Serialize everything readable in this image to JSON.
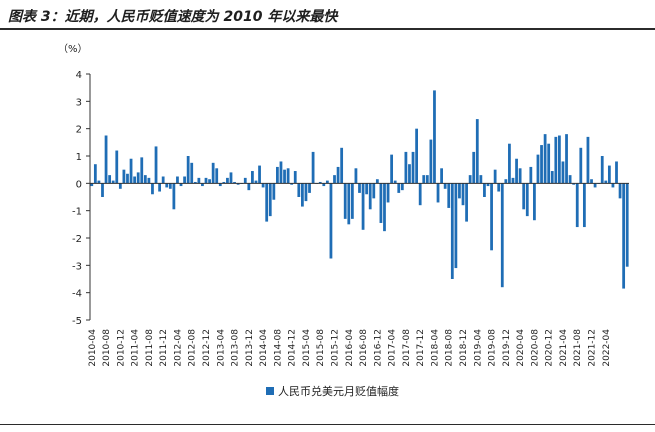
{
  "title": "图表 3：近期，人民币贬值速度为 2010 年以来最快",
  "chart_data": {
    "type": "bar",
    "unit_label": "（%）",
    "ylim": [
      -5,
      4
    ],
    "yticks": [
      -5,
      -4,
      -3,
      -2,
      -1,
      0,
      1,
      2,
      3,
      4
    ],
    "x_start": "2010-04",
    "xtick_labels": [
      "2010-04",
      "2010-08",
      "2010-12",
      "2011-04",
      "2011-08",
      "2011-12",
      "2012-04",
      "2012-08",
      "2012-12",
      "2013-04",
      "2013-08",
      "2013-12",
      "2014-04",
      "2014-08",
      "2014-12",
      "2015-04",
      "2015-08",
      "2015-12",
      "2016-04",
      "2016-08",
      "2016-12",
      "2017-04",
      "2017-08",
      "2017-12",
      "2018-04",
      "2018-08",
      "2018-12",
      "2019-04",
      "2019-08",
      "2019-12",
      "2020-04",
      "2020-08",
      "2020-12",
      "2021-04",
      "2021-08",
      "2021-12",
      "2022-04"
    ],
    "series": [
      {
        "name": "人民币兑美元月贬值幅度",
        "color": "#1f6db5",
        "values": [
          -0.1,
          0.7,
          0.1,
          -0.5,
          1.75,
          0.3,
          0.1,
          1.2,
          -0.2,
          0.5,
          0.35,
          0.9,
          0.25,
          0.4,
          0.95,
          0.3,
          0.2,
          -0.4,
          1.35,
          -0.3,
          0.25,
          -0.15,
          -0.2,
          -0.95,
          0.25,
          -0.1,
          0.25,
          1.0,
          0.75,
          0.05,
          0.2,
          -0.1,
          0.2,
          0.15,
          0.75,
          0.55,
          -0.1,
          0.05,
          0.2,
          0.4,
          0.05,
          -0.05,
          0.0,
          0.2,
          -0.25,
          0.45,
          0.1,
          0.65,
          -0.15,
          -1.4,
          -1.2,
          -0.6,
          0.6,
          0.8,
          0.5,
          0.55,
          -0.05,
          0.45,
          -0.5,
          -0.85,
          -0.65,
          -0.35,
          1.15,
          0.0,
          0.05,
          -0.1,
          0.1,
          -2.75,
          0.3,
          0.6,
          1.3,
          -1.3,
          -1.5,
          -1.3,
          0.55,
          -0.35,
          -1.7,
          -0.4,
          -0.95,
          -0.55,
          0.15,
          -1.45,
          -1.75,
          -0.7,
          1.05,
          0.1,
          -0.35,
          -0.25,
          1.15,
          0.7,
          1.15,
          2.0,
          -0.8,
          0.3,
          0.3,
          1.6,
          3.4,
          -0.7,
          0.55,
          -0.2,
          -0.9,
          -3.5,
          -3.1,
          -0.55,
          -0.8,
          -1.4,
          0.3,
          1.15,
          2.35,
          0.3,
          -0.5,
          -0.1,
          -2.45,
          0.5,
          -0.3,
          -3.8,
          0.15,
          1.45,
          0.2,
          0.9,
          0.55,
          -0.95,
          -1.2,
          0.6,
          -1.35,
          1.05,
          1.4,
          1.8,
          1.45,
          0.45,
          1.7,
          1.75,
          0.8,
          1.8,
          0.3,
          -0.05,
          -1.6,
          1.3,
          -1.6,
          1.7,
          0.15,
          -0.15,
          0.0,
          1.0,
          0.1,
          0.65,
          -0.15,
          0.8,
          -0.55,
          -3.85,
          -3.05
        ]
      }
    ],
    "legend_position": "bottom-center",
    "grid": false
  }
}
